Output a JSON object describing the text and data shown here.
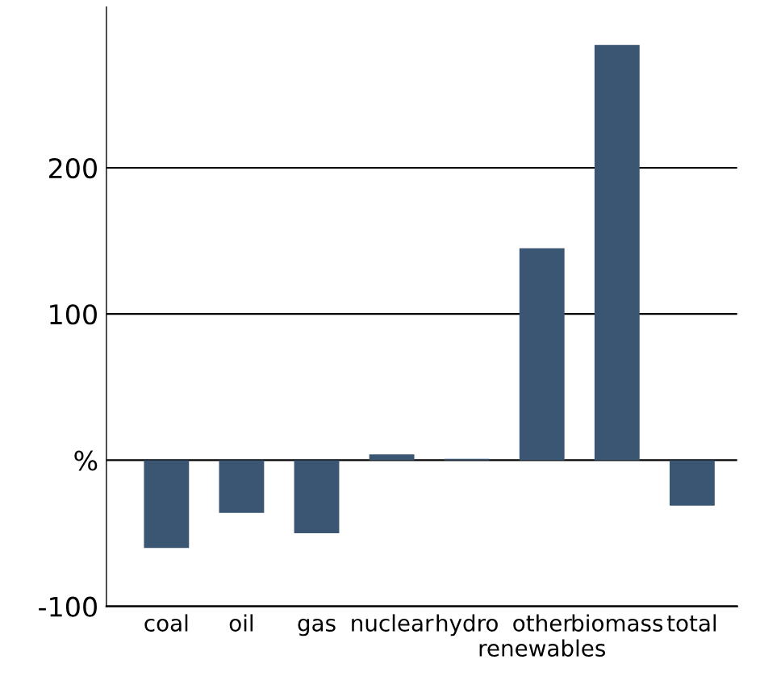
{
  "chart_data": {
    "type": "bar",
    "categories": [
      "coal",
      "oil",
      "gas",
      "nuclear",
      "hydro",
      "other renewables",
      "biomass",
      "total"
    ],
    "values": [
      -60,
      -36,
      -50,
      4,
      1,
      145,
      284,
      -31
    ],
    "color": "#3b5672",
    "ylim": [
      -100,
      310
    ],
    "yticks": [
      -100,
      {
        "value": 0,
        "label": "%"
      },
      100,
      200
    ],
    "grid": "y"
  }
}
